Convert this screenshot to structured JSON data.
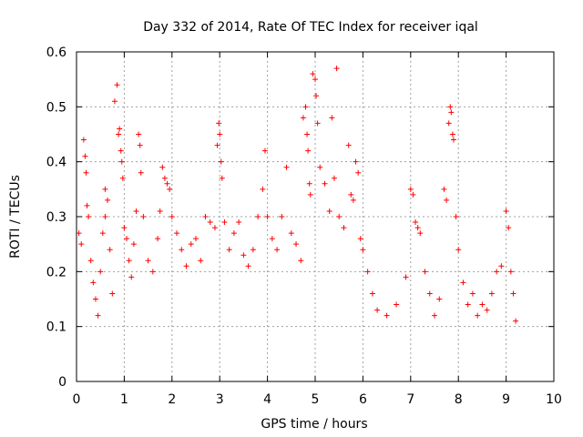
{
  "chart_data": {
    "type": "scatter",
    "title": "Day 332 of 2014, Rate Of TEC Index for receiver iqal",
    "xlabel": "GPS time / hours",
    "ylabel": "ROTI / TECUs",
    "xlim": [
      0,
      10
    ],
    "ylim": [
      0,
      0.6
    ],
    "xticks": [
      0,
      1,
      2,
      3,
      4,
      5,
      6,
      7,
      8,
      9,
      10
    ],
    "yticks": [
      0,
      0.1,
      0.2,
      0.3,
      0.4,
      0.5,
      0.6
    ],
    "xtick_labels": [
      "0",
      "1",
      "2",
      "3",
      "4",
      "5",
      "6",
      "7",
      "8",
      "9",
      "10"
    ],
    "ytick_labels": [
      "0",
      "0.1",
      "0.2",
      "0.3",
      "0.4",
      "0.5",
      "0.6"
    ],
    "grid": true,
    "marker": "+",
    "color": "#ff0000",
    "series": [
      {
        "name": "ROTI",
        "points": [
          [
            0.05,
            0.27
          ],
          [
            0.1,
            0.25
          ],
          [
            0.15,
            0.44
          ],
          [
            0.18,
            0.41
          ],
          [
            0.2,
            0.38
          ],
          [
            0.22,
            0.32
          ],
          [
            0.25,
            0.3
          ],
          [
            0.3,
            0.22
          ],
          [
            0.35,
            0.18
          ],
          [
            0.4,
            0.15
          ],
          [
            0.45,
            0.12
          ],
          [
            0.5,
            0.2
          ],
          [
            0.55,
            0.27
          ],
          [
            0.6,
            0.35
          ],
          [
            0.6,
            0.3
          ],
          [
            0.65,
            0.33
          ],
          [
            0.7,
            0.24
          ],
          [
            0.75,
            0.16
          ],
          [
            0.8,
            0.51
          ],
          [
            0.85,
            0.54
          ],
          [
            0.88,
            0.45
          ],
          [
            0.9,
            0.46
          ],
          [
            0.93,
            0.42
          ],
          [
            0.95,
            0.4
          ],
          [
            0.97,
            0.37
          ],
          [
            1.0,
            0.28
          ],
          [
            1.05,
            0.26
          ],
          [
            1.1,
            0.22
          ],
          [
            1.15,
            0.19
          ],
          [
            1.2,
            0.25
          ],
          [
            1.25,
            0.31
          ],
          [
            1.3,
            0.45
          ],
          [
            1.33,
            0.43
          ],
          [
            1.35,
            0.38
          ],
          [
            1.4,
            0.3
          ],
          [
            1.5,
            0.22
          ],
          [
            1.6,
            0.2
          ],
          [
            1.7,
            0.26
          ],
          [
            1.75,
            0.31
          ],
          [
            1.8,
            0.39
          ],
          [
            1.85,
            0.37
          ],
          [
            1.9,
            0.36
          ],
          [
            1.95,
            0.35
          ],
          [
            2.0,
            0.3
          ],
          [
            2.1,
            0.27
          ],
          [
            2.2,
            0.24
          ],
          [
            2.3,
            0.21
          ],
          [
            2.4,
            0.25
          ],
          [
            2.5,
            0.26
          ],
          [
            2.6,
            0.22
          ],
          [
            2.7,
            0.3
          ],
          [
            2.8,
            0.29
          ],
          [
            2.9,
            0.28
          ],
          [
            2.95,
            0.43
          ],
          [
            2.98,
            0.47
          ],
          [
            3.0,
            0.45
          ],
          [
            3.03,
            0.4
          ],
          [
            3.05,
            0.37
          ],
          [
            3.1,
            0.29
          ],
          [
            3.2,
            0.24
          ],
          [
            3.3,
            0.27
          ],
          [
            3.4,
            0.29
          ],
          [
            3.5,
            0.23
          ],
          [
            3.6,
            0.21
          ],
          [
            3.7,
            0.24
          ],
          [
            3.8,
            0.3
          ],
          [
            3.9,
            0.35
          ],
          [
            3.95,
            0.42
          ],
          [
            4.0,
            0.3
          ],
          [
            4.1,
            0.26
          ],
          [
            4.2,
            0.24
          ],
          [
            4.3,
            0.3
          ],
          [
            4.4,
            0.39
          ],
          [
            4.5,
            0.27
          ],
          [
            4.6,
            0.25
          ],
          [
            4.7,
            0.22
          ],
          [
            4.75,
            0.48
          ],
          [
            4.8,
            0.5
          ],
          [
            4.83,
            0.45
          ],
          [
            4.85,
            0.42
          ],
          [
            4.88,
            0.36
          ],
          [
            4.9,
            0.34
          ],
          [
            4.95,
            0.56
          ],
          [
            5.0,
            0.55
          ],
          [
            5.02,
            0.52
          ],
          [
            5.05,
            0.47
          ],
          [
            5.1,
            0.39
          ],
          [
            5.2,
            0.36
          ],
          [
            5.3,
            0.31
          ],
          [
            5.35,
            0.48
          ],
          [
            5.4,
            0.37
          ],
          [
            5.45,
            0.57
          ],
          [
            5.5,
            0.3
          ],
          [
            5.6,
            0.28
          ],
          [
            5.7,
            0.43
          ],
          [
            5.75,
            0.34
          ],
          [
            5.8,
            0.33
          ],
          [
            5.85,
            0.4
          ],
          [
            5.9,
            0.38
          ],
          [
            5.95,
            0.26
          ],
          [
            6.0,
            0.24
          ],
          [
            6.1,
            0.2
          ],
          [
            6.2,
            0.16
          ],
          [
            6.3,
            0.13
          ],
          [
            6.5,
            0.12
          ],
          [
            6.7,
            0.14
          ],
          [
            6.9,
            0.19
          ],
          [
            7.0,
            0.35
          ],
          [
            7.05,
            0.34
          ],
          [
            7.1,
            0.29
          ],
          [
            7.15,
            0.28
          ],
          [
            7.2,
            0.27
          ],
          [
            7.3,
            0.2
          ],
          [
            7.4,
            0.16
          ],
          [
            7.5,
            0.12
          ],
          [
            7.6,
            0.15
          ],
          [
            7.7,
            0.35
          ],
          [
            7.75,
            0.33
          ],
          [
            7.8,
            0.47
          ],
          [
            7.83,
            0.5
          ],
          [
            7.85,
            0.49
          ],
          [
            7.88,
            0.45
          ],
          [
            7.9,
            0.44
          ],
          [
            7.95,
            0.3
          ],
          [
            8.0,
            0.24
          ],
          [
            8.1,
            0.18
          ],
          [
            8.2,
            0.14
          ],
          [
            8.3,
            0.16
          ],
          [
            8.4,
            0.12
          ],
          [
            8.5,
            0.14
          ],
          [
            8.6,
            0.13
          ],
          [
            8.7,
            0.16
          ],
          [
            8.8,
            0.2
          ],
          [
            8.9,
            0.21
          ],
          [
            9.0,
            0.31
          ],
          [
            9.05,
            0.28
          ],
          [
            9.1,
            0.2
          ],
          [
            9.15,
            0.16
          ],
          [
            9.2,
            0.11
          ]
        ]
      }
    ]
  }
}
